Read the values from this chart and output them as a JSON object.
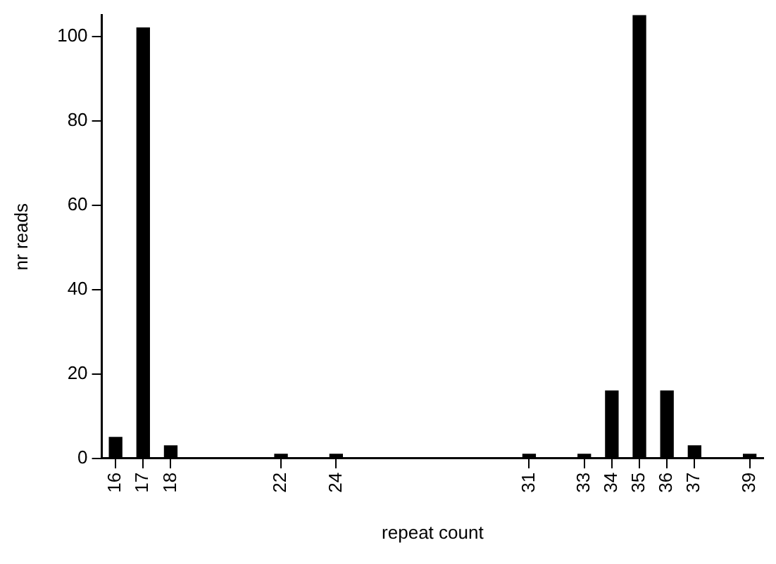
{
  "chart_data": {
    "type": "bar",
    "xlabel": "repeat count",
    "ylabel": "nr reads",
    "x": [
      16,
      17,
      18,
      22,
      24,
      31,
      33,
      34,
      35,
      36,
      37,
      39
    ],
    "values": [
      5,
      102,
      3,
      1,
      1,
      1,
      1,
      16,
      105,
      16,
      3,
      1
    ],
    "color": "#000000",
    "xlim": [
      15.5,
      39.5
    ],
    "xticks": [
      16,
      17,
      18,
      22,
      24,
      31,
      33,
      34,
      35,
      36,
      37,
      39
    ],
    "ylim": [
      0,
      105
    ],
    "yticks": [
      0,
      20,
      40,
      60,
      80,
      100
    ],
    "grid": false,
    "legend": false
  }
}
